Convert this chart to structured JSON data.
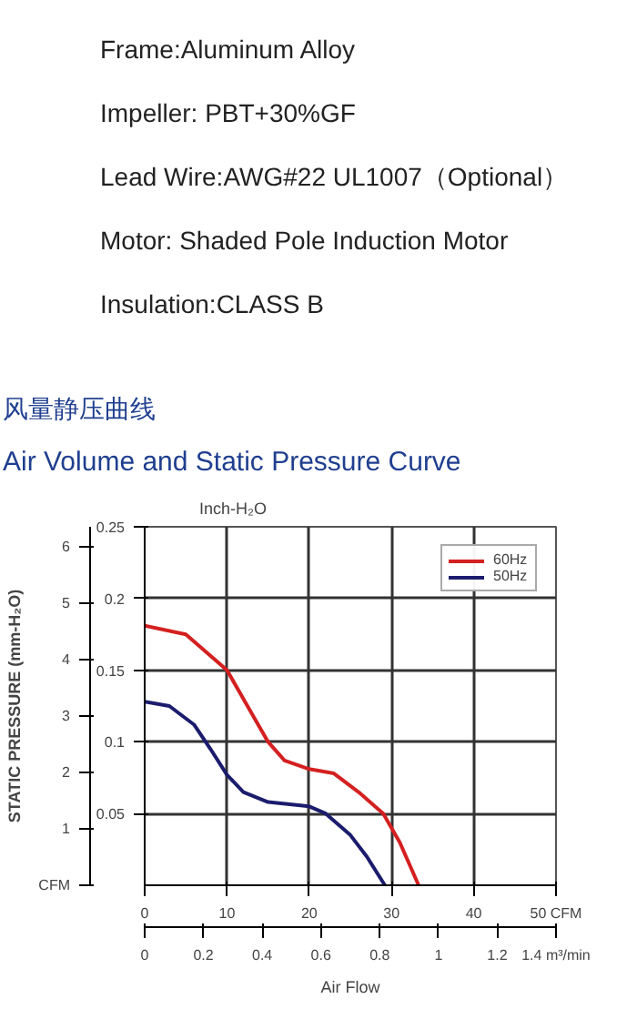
{
  "chart_data": {
    "type": "line",
    "title": "风量静压曲线",
    "subtitle": "Air Volume and Static Pressure Curve",
    "annotations": [
      "Frame:Aluminum Alloy",
      "Impeller: PBT+30%GF",
      "Lead Wire:AWG#22 UL1007（Optional）",
      "Motor: Shaded Pole Induction Motor",
      "Insulation:CLASS B"
    ],
    "ylabel": "Inch-H₂O",
    "y2label": "STATIC PRESSURE (mm-H₂O)",
    "x2label": "Air Flow",
    "xlim": [
      0,
      50
    ],
    "xticks": [
      0,
      10,
      20,
      30,
      40,
      {
        "value": 50,
        "label": "50 CFM"
      }
    ],
    "ylim": [
      0,
      0.25
    ],
    "yticks": [
      0.05,
      0.1,
      0.15,
      0.2,
      0.25
    ],
    "y2lim": [
      0,
      6.35
    ],
    "y2ticks": [
      {
        "value": 0,
        "label": "CFM"
      },
      1,
      2,
      3,
      4,
      5,
      6
    ],
    "x2lim": [
      0,
      1.4
    ],
    "x2ticks": [
      0,
      0.2,
      0.4,
      0.6,
      0.8,
      1.0,
      1.2,
      {
        "value": 1.4,
        "label": "1.4 m³/min"
      }
    ],
    "grid": true,
    "legend": "top right",
    "series": [
      {
        "name": "60Hz",
        "color": "#d42020",
        "x": [
          0,
          5,
          10,
          13,
          15,
          17,
          20,
          23,
          26,
          29,
          31,
          33.3
        ],
        "values": [
          0.181,
          0.175,
          0.15,
          0.12,
          0.1,
          0.087,
          0.081,
          0.078,
          0.065,
          0.05,
          0.03,
          0
        ]
      },
      {
        "name": "50Hz",
        "color": "#1c1c6e",
        "x": [
          0,
          3,
          6,
          8,
          10,
          12,
          15,
          20,
          22,
          25,
          27,
          29.2
        ],
        "values": [
          0.128,
          0.125,
          0.112,
          0.095,
          0.077,
          0.065,
          0.058,
          0.055,
          0.05,
          0.035,
          0.02,
          0
        ]
      }
    ]
  }
}
